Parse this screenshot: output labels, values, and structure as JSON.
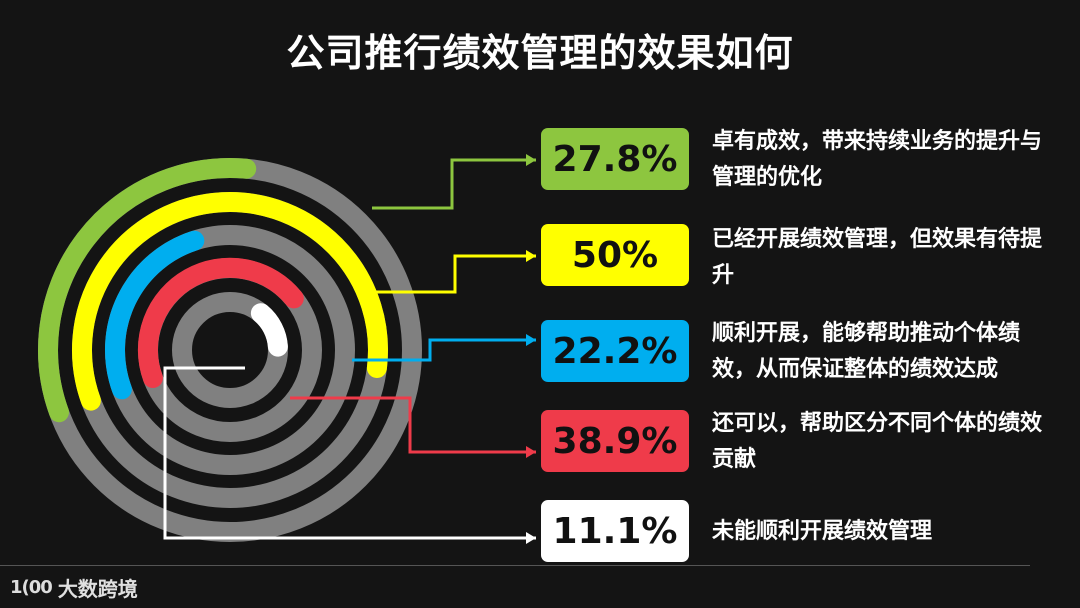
{
  "title": "公司推行绩效管理的效果如何",
  "colors": {
    "background": "#141414",
    "track": "#808080",
    "green": "#8dc63f",
    "yellow": "#ffff00",
    "blue": "#00aeef",
    "red": "#ef3b4a",
    "white": "#ffffff"
  },
  "chart_data": {
    "type": "radial-bar",
    "title": "公司推行绩效管理的效果如何",
    "series": [
      {
        "value_label": "27.8%",
        "value": 27.8,
        "description": "卓有成效，带来持续业务的提升与管理的优化",
        "color": "#8dc63f"
      },
      {
        "value_label": "50%",
        "value": 50.0,
        "description": "已经开展绩效管理，但效果有待提升",
        "color": "#ffff00"
      },
      {
        "value_label": "22.2%",
        "value": 22.2,
        "description": "顺利开展，能够帮助推动个体绩效，从而保证整体的绩效达成",
        "color": "#00aeef"
      },
      {
        "value_label": "38.9%",
        "value": 38.9,
        "description": "还可以，帮助区分不同个体的绩效贡献",
        "color": "#ef3b4a"
      },
      {
        "value_label": "11.1%",
        "value": 11.1,
        "description": "未能顺利开展绩效管理",
        "color": "#ffffff"
      }
    ]
  },
  "footer": {
    "logo_mark": "1(00",
    "brand": "大数跨境"
  }
}
